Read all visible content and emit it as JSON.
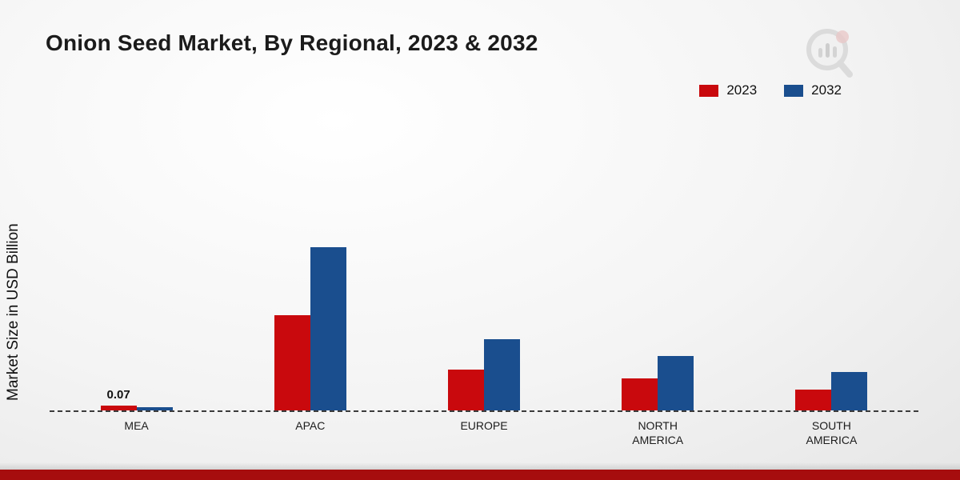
{
  "title": "Onion Seed Market, By Regional, 2023 & 2032",
  "ylabel": "Market Size in USD Billion",
  "colors": {
    "series_2023": "#c9090d",
    "series_2032": "#1a4e8e",
    "bottom_bar": "#a60d0e",
    "baseline": "#3c3c3c"
  },
  "legend": {
    "position": "top-right",
    "items": [
      {
        "label": "2023",
        "color": "#c9090d"
      },
      {
        "label": "2032",
        "color": "#1a4e8e"
      }
    ]
  },
  "chart_data": {
    "type": "bar",
    "title": "Onion Seed Market, By Regional, 2023 & 2032",
    "xlabel": "",
    "ylabel": "Market Size in USD Billion",
    "ylim": [
      0,
      2.5
    ],
    "grid": false,
    "baseline_style": "dashed",
    "categories": [
      "MEA",
      "APAC",
      "EUROPE",
      "NORTH AMERICA",
      "SOUTH AMERICA"
    ],
    "series": [
      {
        "name": "2023",
        "color": "#c9090d",
        "values": [
          0.07,
          1.4,
          0.6,
          0.47,
          0.31
        ]
      },
      {
        "name": "2032",
        "color": "#1a4e8e",
        "values": [
          0.05,
          2.4,
          1.05,
          0.8,
          0.57
        ]
      }
    ],
    "annotations": [
      {
        "series": "2023",
        "category": "MEA",
        "text": "0.07"
      }
    ]
  }
}
